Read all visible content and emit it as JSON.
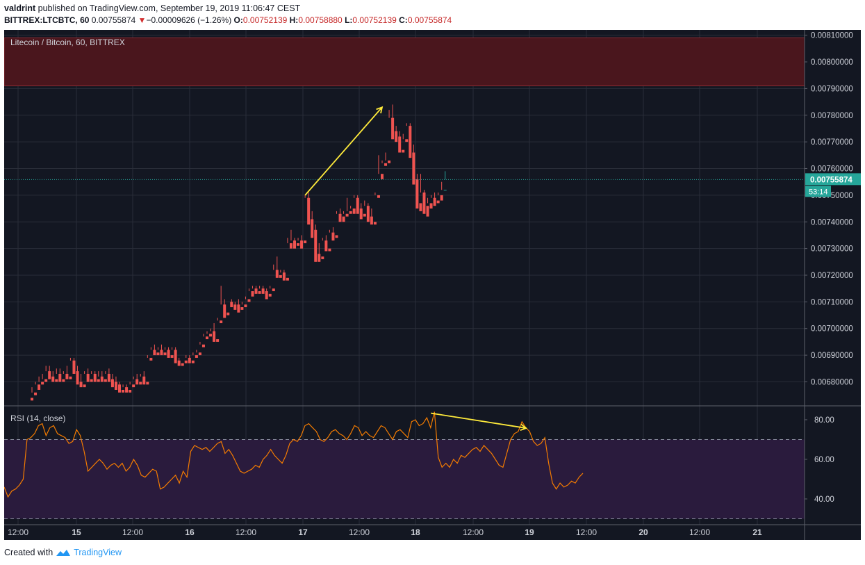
{
  "header": {
    "author": "valdrint",
    "published_text": "published on TradingView.com, September 19, 2019 11:06:47 CEST",
    "symbol": "BITTREX:LTCBTC, 60",
    "last": "0.00755874",
    "change_arrow": "▼",
    "change": "−0.00009626 (−1.26%)",
    "o_label": "O:",
    "o_value": "0.00752139",
    "h_label": "H:",
    "h_value": "0.00758880",
    "l_label": "L:",
    "l_value": "0.00752139",
    "c_label": "C:",
    "c_value": "0.00755874"
  },
  "footer": {
    "created_with": "Created with",
    "brand": "TradingView"
  },
  "colors": {
    "background": "#131722",
    "grid": "#2a2e39",
    "up": "#26a69a",
    "down": "#ef5350",
    "resistance_zone": "#4a161d",
    "rsi_band": "#2a1b3d",
    "rsi_line": "#f57c00",
    "annotation": "#ffeb3b",
    "last_price": "#26a69a"
  },
  "chart_data": [
    {
      "type": "candlestick",
      "legend": "Litecoin / Bitcoin, 60, BITTREX",
      "timeframe": "60 min",
      "ylim": [
        0.00671,
        0.00812
      ],
      "y_ticks": [
        "0.00810000",
        "0.00800000",
        "0.00790000",
        "0.00780000",
        "0.00770000",
        "0.00760000",
        "0.00750000",
        "0.00740000",
        "0.00730000",
        "0.00720000",
        "0.00710000",
        "0.00700000",
        "0.00690000",
        "0.00680000"
      ],
      "x_ticks": [
        "12:00",
        "15",
        "12:00",
        "16",
        "12:00",
        "17",
        "12:00",
        "18",
        "12:00",
        "19",
        "12:00",
        "20",
        "12:00",
        "21"
      ],
      "last_price_label": "0.00755874",
      "countdown_label": "53:14",
      "resistance_zone": [
        0.00791,
        0.00809
      ],
      "candles": [
        [
          0.00674,
          0.00678,
          0.00676,
          0.00673
        ],
        [
          0.00676,
          0.0068,
          0.00679,
          0.00675
        ],
        [
          0.00679,
          0.00682,
          0.0068,
          0.00677
        ],
        [
          0.0068,
          0.00683,
          0.00681,
          0.00679
        ],
        [
          0.00681,
          0.00686,
          0.00684,
          0.0068
        ],
        [
          0.00684,
          0.00686,
          0.00682,
          0.00681
        ],
        [
          0.00682,
          0.00684,
          0.00681,
          0.0068
        ],
        [
          0.00681,
          0.00685,
          0.00683,
          0.0068
        ],
        [
          0.00683,
          0.00685,
          0.00681,
          0.0068
        ],
        [
          0.00681,
          0.00684,
          0.00683,
          0.0068
        ],
        [
          0.00683,
          0.00686,
          0.00682,
          0.00681
        ],
        [
          0.00682,
          0.00689,
          0.00688,
          0.00681
        ],
        [
          0.00688,
          0.00689,
          0.00684,
          0.00683
        ],
        [
          0.00684,
          0.00686,
          0.0068,
          0.00679
        ],
        [
          0.0068,
          0.00683,
          0.00679,
          0.00678
        ],
        [
          0.00679,
          0.00684,
          0.00683,
          0.00678
        ],
        [
          0.00683,
          0.00685,
          0.00681,
          0.0068
        ],
        [
          0.00681,
          0.00684,
          0.00683,
          0.0068
        ],
        [
          0.00683,
          0.00684,
          0.00681,
          0.0068
        ],
        [
          0.00681,
          0.00684,
          0.00682,
          0.0068
        ],
        [
          0.00682,
          0.00684,
          0.00681,
          0.0068
        ],
        [
          0.00681,
          0.00684,
          0.00683,
          0.0068
        ],
        [
          0.00683,
          0.00685,
          0.00681,
          0.0068
        ],
        [
          0.00681,
          0.00683,
          0.0068,
          0.00678
        ],
        [
          0.0068,
          0.00682,
          0.00679,
          0.00677
        ],
        [
          0.00679,
          0.0068,
          0.00677,
          0.00676
        ],
        [
          0.00677,
          0.00679,
          0.00678,
          0.00676
        ],
        [
          0.00678,
          0.00679,
          0.00677,
          0.00676
        ],
        [
          0.00677,
          0.0068,
          0.00679,
          0.00676
        ],
        [
          0.00679,
          0.00682,
          0.00681,
          0.00678
        ],
        [
          0.00681,
          0.00683,
          0.0068,
          0.00679
        ],
        [
          0.0068,
          0.00683,
          0.00682,
          0.00679
        ],
        [
          0.00682,
          0.00684,
          0.0068,
          0.00679
        ],
        [
          0.0068,
          0.0069,
          0.00689,
          0.00679
        ],
        [
          0.00689,
          0.00693,
          0.00692,
          0.00688
        ],
        [
          0.00692,
          0.00694,
          0.00691,
          0.0069
        ],
        [
          0.00691,
          0.00693,
          0.00692,
          0.0069
        ],
        [
          0.00692,
          0.00694,
          0.00691,
          0.0069
        ],
        [
          0.00691,
          0.00693,
          0.00692,
          0.0069
        ],
        [
          0.00692,
          0.00693,
          0.0069,
          0.00689
        ],
        [
          0.0069,
          0.00693,
          0.00692,
          0.00689
        ],
        [
          0.00692,
          0.00693,
          0.00688,
          0.00687
        ],
        [
          0.00688,
          0.00689,
          0.00687,
          0.00686
        ],
        [
          0.00687,
          0.00688,
          0.00688,
          0.00686
        ],
        [
          0.00688,
          0.0069,
          0.00689,
          0.00687
        ],
        [
          0.00689,
          0.0069,
          0.00688,
          0.00687
        ],
        [
          0.00688,
          0.00691,
          0.0069,
          0.00687
        ],
        [
          0.0069,
          0.00692,
          0.00691,
          0.00689
        ],
        [
          0.00691,
          0.00695,
          0.00694,
          0.0069
        ],
        [
          0.00694,
          0.00698,
          0.00697,
          0.00693
        ],
        [
          0.00697,
          0.00699,
          0.00698,
          0.00696
        ],
        [
          0.00698,
          0.007,
          0.00699,
          0.00697
        ],
        [
          0.00699,
          0.00702,
          0.00696,
          0.00695
        ],
        [
          0.00696,
          0.00704,
          0.00703,
          0.00695
        ],
        [
          0.00703,
          0.00716,
          0.00709,
          0.00702
        ],
        [
          0.00709,
          0.00711,
          0.00706,
          0.00704
        ],
        [
          0.00706,
          0.0071,
          0.0071,
          0.00705
        ],
        [
          0.0071,
          0.00711,
          0.00709,
          0.00708
        ],
        [
          0.00709,
          0.0071,
          0.00709,
          0.00707
        ],
        [
          0.00709,
          0.00711,
          0.00708,
          0.00706
        ],
        [
          0.00708,
          0.0071,
          0.00709,
          0.00707
        ],
        [
          0.00709,
          0.00712,
          0.00711,
          0.00708
        ],
        [
          0.00711,
          0.00715,
          0.00714,
          0.0071
        ],
        [
          0.00714,
          0.00716,
          0.00715,
          0.00712
        ],
        [
          0.00715,
          0.00716,
          0.00714,
          0.00713
        ],
        [
          0.00714,
          0.00716,
          0.00715,
          0.00713
        ],
        [
          0.00715,
          0.00716,
          0.00714,
          0.00713
        ],
        [
          0.00714,
          0.00715,
          0.00713,
          0.00711
        ],
        [
          0.00713,
          0.00716,
          0.00715,
          0.00712
        ],
        [
          0.00715,
          0.00724,
          0.00722,
          0.00714
        ],
        [
          0.00722,
          0.00727,
          0.0072,
          0.00719
        ],
        [
          0.0072,
          0.00722,
          0.00721,
          0.00719
        ],
        [
          0.00721,
          0.00722,
          0.00719,
          0.00718
        ],
        [
          0.00719,
          0.00734,
          0.00732,
          0.00718
        ],
        [
          0.00732,
          0.00737,
          0.00733,
          0.0073
        ],
        [
          0.00733,
          0.00734,
          0.00732,
          0.0073
        ],
        [
          0.00732,
          0.00734,
          0.00733,
          0.00731
        ],
        [
          0.00733,
          0.00735,
          0.00731,
          0.0073
        ],
        [
          0.00733,
          0.0075,
          0.00749,
          0.00732
        ],
        [
          0.00749,
          0.00751,
          0.00741,
          0.00739
        ],
        [
          0.00741,
          0.00744,
          0.00737,
          0.00734
        ],
        [
          0.00737,
          0.00739,
          0.00728,
          0.00725
        ],
        [
          0.00728,
          0.00732,
          0.00727,
          0.00725
        ],
        [
          0.00727,
          0.00734,
          0.00733,
          0.00726
        ],
        [
          0.00733,
          0.00735,
          0.0073,
          0.00729
        ],
        [
          0.0073,
          0.00737,
          0.00736,
          0.00729
        ],
        [
          0.00736,
          0.00738,
          0.00735,
          0.00733
        ],
        [
          0.00735,
          0.00744,
          0.00743,
          0.00734
        ],
        [
          0.00743,
          0.00745,
          0.00742,
          0.0074
        ],
        [
          0.00742,
          0.00744,
          0.00743,
          0.0074
        ],
        [
          0.00743,
          0.00749,
          0.00744,
          0.00742
        ],
        [
          0.00744,
          0.00746,
          0.00745,
          0.00743
        ],
        [
          0.00745,
          0.0075,
          0.00749,
          0.00743
        ],
        [
          0.00749,
          0.0075,
          0.00745,
          0.00743
        ],
        [
          0.00745,
          0.00747,
          0.00743,
          0.00741
        ],
        [
          0.00743,
          0.00748,
          0.00746,
          0.00742
        ],
        [
          0.00746,
          0.00747,
          0.00742,
          0.0074
        ],
        [
          0.00742,
          0.00745,
          0.0074,
          0.00739
        ],
        [
          0.0074,
          0.00751,
          0.0075,
          0.00739
        ],
        [
          0.0075,
          0.00765,
          0.00758,
          0.00749
        ],
        [
          0.00758,
          0.00763,
          0.00762,
          0.00756
        ],
        [
          0.00762,
          0.00766,
          0.00763,
          0.00761
        ],
        [
          0.00763,
          0.00782,
          0.00779,
          0.00762
        ],
        [
          0.00779,
          0.00784,
          0.00774,
          0.00771
        ],
        [
          0.00774,
          0.00776,
          0.00772,
          0.0077
        ],
        [
          0.00772,
          0.00774,
          0.00767,
          0.00766
        ],
        [
          0.00767,
          0.00773,
          0.00771,
          0.00766
        ],
        [
          0.00771,
          0.00777,
          0.00776,
          0.0077
        ],
        [
          0.00776,
          0.00777,
          0.00766,
          0.00764
        ],
        [
          0.00766,
          0.00769,
          0.00756,
          0.00754
        ],
        [
          0.00756,
          0.00758,
          0.00747,
          0.00745
        ],
        [
          0.00747,
          0.00758,
          0.00751,
          0.00744
        ],
        [
          0.00751,
          0.00752,
          0.00746,
          0.00743
        ],
        [
          0.00746,
          0.00749,
          0.00747,
          0.00742
        ],
        [
          0.00747,
          0.0075,
          0.00749,
          0.00745
        ],
        [
          0.00749,
          0.00751,
          0.00748,
          0.00746
        ],
        [
          0.00748,
          0.00751,
          0.0075,
          0.00747
        ],
        [
          0.0075,
          0.00755,
          0.00752,
          0.00748
        ],
        [
          0.00752,
          0.00759,
          0.00755874,
          0.00752
        ]
      ],
      "annotations": [
        {
          "type": "arrow",
          "from_candle": 78,
          "from_price": 0.0075,
          "to_candle": 100,
          "to_price": 0.00783
        }
      ]
    },
    {
      "type": "line",
      "legend": "RSI (14, close)",
      "ylim": [
        27,
        87
      ],
      "y_ticks": [
        "80.00",
        "60.00",
        "40.00"
      ],
      "band": [
        30,
        70
      ],
      "values": [
        46,
        41,
        44,
        45,
        47,
        50,
        70,
        71,
        73,
        77,
        78,
        72,
        76,
        77,
        73,
        72,
        71,
        68,
        69,
        75,
        72,
        64,
        54,
        56,
        58,
        60,
        58,
        55,
        57,
        58,
        56,
        58,
        54,
        56,
        60,
        57,
        52,
        51,
        53,
        55,
        54,
        45,
        46,
        48,
        50,
        52,
        48,
        54,
        51,
        64,
        67,
        66,
        65,
        66,
        64,
        66,
        68,
        69,
        63,
        65,
        62,
        58,
        54,
        53,
        54,
        55,
        57,
        56,
        60,
        62,
        65,
        62,
        60,
        58,
        62,
        68,
        70,
        69,
        72,
        77,
        78,
        76,
        74,
        70,
        69,
        71,
        74,
        75,
        73,
        72,
        70,
        73,
        77,
        76,
        72,
        74,
        72,
        71,
        74,
        77,
        76,
        73,
        70,
        74,
        75,
        73,
        71,
        79,
        80,
        77,
        78,
        81,
        76,
        84,
        61,
        56,
        58,
        56,
        60,
        58,
        62,
        61,
        63,
        65,
        66,
        64,
        67,
        65,
        63,
        60,
        57,
        56,
        63,
        70,
        73,
        74,
        79,
        76,
        74,
        69,
        67,
        68,
        71,
        58,
        48,
        45,
        48,
        46,
        47,
        49,
        48,
        51,
        53
      ]
    }
  ]
}
